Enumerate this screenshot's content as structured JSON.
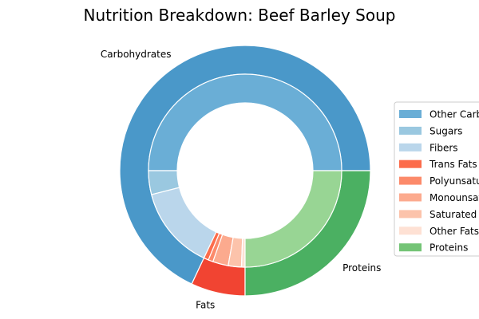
{
  "chart_data": {
    "type": "pie",
    "title": "Nutrition Breakdown:  Beef Barley Soup",
    "outer_ring": [
      {
        "label": "Carbohydrates",
        "value": 68.0,
        "color": "#4a98c9"
      },
      {
        "label": "Fats",
        "value": 7.0,
        "color": "#f14432"
      },
      {
        "label": "Proteins",
        "value": 25.0,
        "color": "#4bb062"
      }
    ],
    "inner_ring": [
      {
        "label": "Other Carbohydrates",
        "value": 50.0,
        "color": "#6aaed6"
      },
      {
        "label": "Sugars",
        "value": 4.0,
        "color": "#9ac8e0"
      },
      {
        "label": "Fibers",
        "value": 14.0,
        "color": "#bad6eb"
      },
      {
        "label": "Trans Fats",
        "value": 0.8,
        "color": "#fc6c4b"
      },
      {
        "label": "Polyunsaturated Fats",
        "value": 0.8,
        "color": "#fc8a6a"
      },
      {
        "label": "Monounsaturated Fats",
        "value": 2.6,
        "color": "#fcaa8e"
      },
      {
        "label": "Saturated Fats",
        "value": 2.2,
        "color": "#fcc3ab"
      },
      {
        "label": "Other Fats",
        "value": 0.6,
        "color": "#fee1d4"
      },
      {
        "label": "Proteins",
        "value": 25.0,
        "color": "#98d594"
      }
    ],
    "legend": {
      "placement": "right",
      "entries": [
        {
          "label": "Other Carbohydrates",
          "color": "#6aaed6"
        },
        {
          "label": "Sugars",
          "color": "#9ac8e0"
        },
        {
          "label": "Fibers",
          "color": "#bad6eb"
        },
        {
          "label": "Trans Fats",
          "color": "#fc6c4b"
        },
        {
          "label": "Polyunsaturated Fats",
          "color": "#fc8a6a"
        },
        {
          "label": "Monounsaturated Fats",
          "color": "#fcaa8e"
        },
        {
          "label": "Saturated Fats",
          "color": "#fcc3ab"
        },
        {
          "label": "Other Fats",
          "color": "#fee1d4"
        },
        {
          "label": "Proteins",
          "color": "#74c476"
        }
      ]
    }
  }
}
